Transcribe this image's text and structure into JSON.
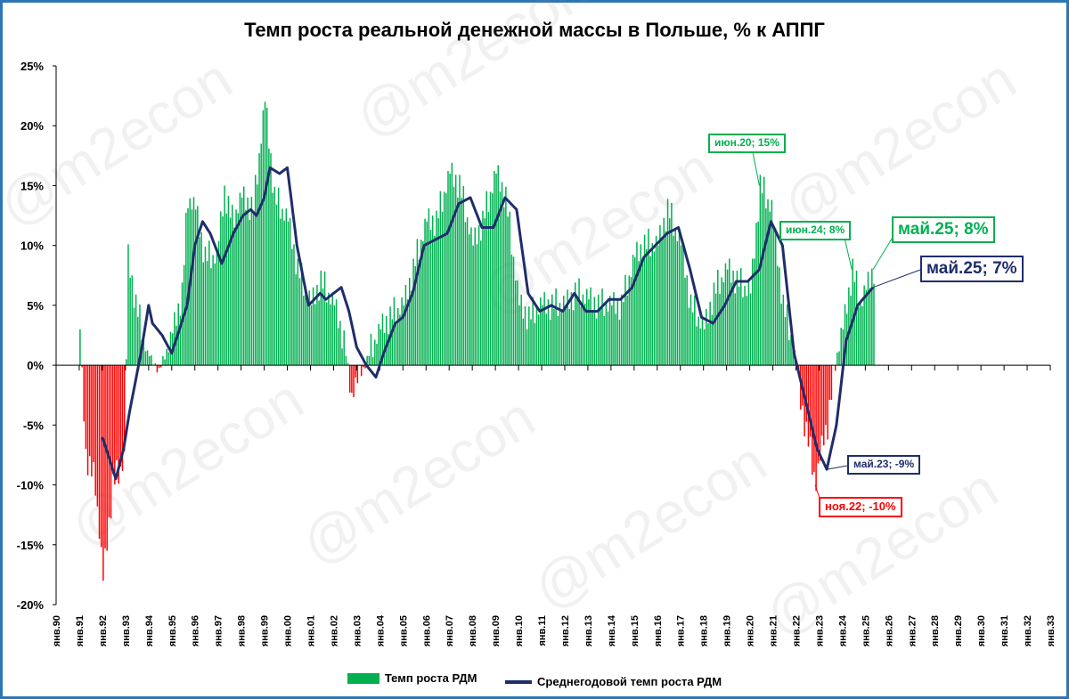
{
  "title": "Темп роста реальной денежной массы в Польше, % к АППГ",
  "watermark": "@m2econ",
  "colors": {
    "positive_bar": "#00b050",
    "negative_bar": "#ff0000",
    "avg_line": "#1f2d6b"
  },
  "legend": {
    "bar_label": "Темп роста РДМ",
    "line_label": "Среднегодовой темп роста РДМ"
  },
  "callouts": {
    "c1": "июн.20; 15%",
    "c2": "июн.24; 8%",
    "c3": "май.25; 8%",
    "c4": "май.25; 7%",
    "c5": "май.23; -9%",
    "c6": "ноя.22; -10%"
  },
  "chart_data": {
    "type": "bar",
    "title": "Темп роста реальной денежной массы в Польше, % к АППГ",
    "ylim": [
      -20,
      25
    ],
    "y_ticks": [
      -20,
      -15,
      -10,
      -5,
      0,
      5,
      10,
      15,
      20,
      25
    ],
    "y_tick_labels": [
      "-20%",
      "-15%",
      "-10%",
      "-5%",
      "0%",
      "5%",
      "10%",
      "15%",
      "20%",
      "25%"
    ],
    "x_tick_labels": [
      "янв.90",
      "янв.91",
      "янв.92",
      "янв.93",
      "янв.94",
      "янв.95",
      "янв.96",
      "янв.97",
      "янв.98",
      "янв.99",
      "янв.00",
      "янв.01",
      "янв.02",
      "янв.03",
      "янв.04",
      "янв.05",
      "янв.06",
      "янв.07",
      "янв.08",
      "янв.09",
      "янв.10",
      "янв.11",
      "янв.12",
      "янв.13",
      "янв.14",
      "янв.15",
      "янв.16",
      "янв.17",
      "янв.18",
      "янв.19",
      "янв.20",
      "янв.21",
      "янв.22",
      "янв.23",
      "янв.24",
      "янв.25",
      "янв.26",
      "янв.27",
      "янв.28",
      "янв.29",
      "янв.30",
      "янв.31",
      "янв.32",
      "янв.33"
    ],
    "grid": "none",
    "legend_position": "bottom",
    "series": [
      {
        "name": "Темп роста РДМ",
        "kind": "bar",
        "frequency": "monthly",
        "start": "1991-01",
        "anchors": [
          [
            "1991-01",
            3
          ],
          [
            "1991-04",
            -7.5
          ],
          [
            "1991-09",
            -10
          ],
          [
            "1992-01",
            -18
          ],
          [
            "1992-06",
            -10
          ],
          [
            "1992-12",
            -8
          ],
          [
            "1993-02",
            9
          ],
          [
            "1993-06",
            5
          ],
          [
            "1993-12",
            1
          ],
          [
            "1994-06",
            -0.5
          ],
          [
            "1994-12",
            2
          ],
          [
            "1995-06",
            6
          ],
          [
            "1995-09",
            14
          ],
          [
            "1996-01",
            13
          ],
          [
            "1996-06",
            9
          ],
          [
            "1996-12",
            9
          ],
          [
            "1997-04",
            14.5
          ],
          [
            "1997-08",
            12
          ],
          [
            "1998-01",
            14
          ],
          [
            "1998-07",
            13
          ],
          [
            "1999-01",
            22
          ],
          [
            "1999-06",
            14
          ],
          [
            "2000-01",
            12
          ],
          [
            "2000-06",
            8
          ],
          [
            "2001-01",
            5
          ],
          [
            "2001-06",
            7
          ],
          [
            "2002-01",
            5
          ],
          [
            "2002-06",
            2
          ],
          [
            "2002-10",
            -2.5
          ],
          [
            "2003-01",
            -1.5
          ],
          [
            "2003-06",
            0.5
          ],
          [
            "2004-01",
            3
          ],
          [
            "2004-06",
            4
          ],
          [
            "2005-01",
            5
          ],
          [
            "2005-06",
            8
          ],
          [
            "2006-01",
            12
          ],
          [
            "2006-06",
            12
          ],
          [
            "2007-01",
            16
          ],
          [
            "2007-06",
            15
          ],
          [
            "2008-01",
            10
          ],
          [
            "2008-06",
            12
          ],
          [
            "2009-01",
            16
          ],
          [
            "2009-06",
            14
          ],
          [
            "2010-01",
            5
          ],
          [
            "2010-06",
            4
          ],
          [
            "2011-01",
            5
          ],
          [
            "2011-06",
            5
          ],
          [
            "2012-01",
            5
          ],
          [
            "2012-06",
            6
          ],
          [
            "2013-01",
            5.5
          ],
          [
            "2013-06",
            5
          ],
          [
            "2014-01",
            5
          ],
          [
            "2014-06",
            5
          ],
          [
            "2015-01",
            9
          ],
          [
            "2015-06",
            10
          ],
          [
            "2016-01",
            10
          ],
          [
            "2016-06",
            13
          ],
          [
            "2017-01",
            10
          ],
          [
            "2017-06",
            5
          ],
          [
            "2018-01",
            3
          ],
          [
            "2018-06",
            6
          ],
          [
            "2019-01",
            8
          ],
          [
            "2019-06",
            7
          ],
          [
            "2020-01",
            6
          ],
          [
            "2020-06",
            15
          ],
          [
            "2020-12",
            13
          ],
          [
            "2021-06",
            5
          ],
          [
            "2021-12",
            1
          ],
          [
            "2022-03",
            -3
          ],
          [
            "2022-11",
            -10
          ],
          [
            "2023-03",
            -6
          ],
          [
            "2023-05",
            -5
          ],
          [
            "2023-10",
            1
          ],
          [
            "2024-01",
            3
          ],
          [
            "2024-06",
            8
          ],
          [
            "2024-10",
            5
          ],
          [
            "2025-05",
            8
          ]
        ]
      },
      {
        "name": "Среднегодовой темп роста РДМ",
        "kind": "line",
        "frequency": "monthly",
        "start": "1992-01",
        "anchors": [
          [
            "1992-01",
            -6
          ],
          [
            "1992-04",
            -7.5
          ],
          [
            "1992-08",
            -9.5
          ],
          [
            "1992-12",
            -7
          ],
          [
            "1993-03",
            -4
          ],
          [
            "1993-09",
            1
          ],
          [
            "1994-01",
            5
          ],
          [
            "1994-03",
            3.5
          ],
          [
            "1994-08",
            2.5
          ],
          [
            "1995-01",
            1
          ],
          [
            "1995-03",
            2
          ],
          [
            "1995-09",
            5
          ],
          [
            "1996-01",
            10
          ],
          [
            "1996-05",
            12
          ],
          [
            "1996-09",
            11
          ],
          [
            "1997-03",
            8.5
          ],
          [
            "1997-09",
            11
          ],
          [
            "1998-02",
            12.5
          ],
          [
            "1998-06",
            13
          ],
          [
            "1998-09",
            12.5
          ],
          [
            "1999-01",
            14
          ],
          [
            "1999-04",
            16.5
          ],
          [
            "1999-09",
            16
          ],
          [
            "2000-01",
            16.5
          ],
          [
            "2000-06",
            10
          ],
          [
            "2000-12",
            5
          ],
          [
            "2001-06",
            6
          ],
          [
            "2001-09",
            5.5
          ],
          [
            "2002-01",
            6
          ],
          [
            "2002-05",
            6.5
          ],
          [
            "2002-09",
            4.5
          ],
          [
            "2003-01",
            1.5
          ],
          [
            "2003-06",
            0
          ],
          [
            "2003-11",
            -1
          ],
          [
            "2004-03",
            1
          ],
          [
            "2004-09",
            3.5
          ],
          [
            "2005-01",
            4
          ],
          [
            "2005-06",
            6
          ],
          [
            "2005-12",
            10
          ],
          [
            "2006-06",
            10.5
          ],
          [
            "2006-12",
            11
          ],
          [
            "2007-06",
            13.5
          ],
          [
            "2007-12",
            14
          ],
          [
            "2008-06",
            11.5
          ],
          [
            "2008-12",
            11.5
          ],
          [
            "2009-06",
            14
          ],
          [
            "2009-12",
            13
          ],
          [
            "2010-06",
            6
          ],
          [
            "2010-12",
            4.5
          ],
          [
            "2011-06",
            5
          ],
          [
            "2011-12",
            4.5
          ],
          [
            "2012-06",
            6
          ],
          [
            "2012-12",
            4.5
          ],
          [
            "2013-06",
            4.5
          ],
          [
            "2013-12",
            5.5
          ],
          [
            "2014-06",
            5.5
          ],
          [
            "2014-12",
            6.5
          ],
          [
            "2015-06",
            9
          ],
          [
            "2015-12",
            10
          ],
          [
            "2016-06",
            11
          ],
          [
            "2016-12",
            11.5
          ],
          [
            "2017-06",
            8
          ],
          [
            "2017-12",
            4
          ],
          [
            "2018-06",
            3.5
          ],
          [
            "2018-12",
            5
          ],
          [
            "2019-06",
            7
          ],
          [
            "2019-12",
            7
          ],
          [
            "2020-06",
            8
          ],
          [
            "2020-12",
            12
          ],
          [
            "2021-06",
            10
          ],
          [
            "2021-12",
            1
          ],
          [
            "2022-06",
            -3
          ],
          [
            "2022-12",
            -7
          ],
          [
            "2023-05",
            -8.7
          ],
          [
            "2023-10",
            -5
          ],
          [
            "2024-03",
            2
          ],
          [
            "2024-09",
            5
          ],
          [
            "2025-05",
            6.5
          ]
        ]
      }
    ]
  }
}
